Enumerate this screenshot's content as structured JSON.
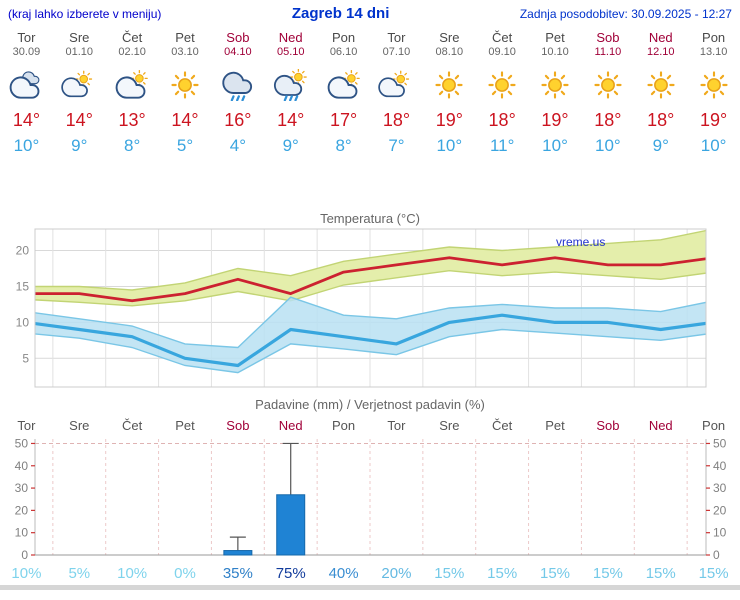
{
  "header": {
    "left_note": "(kraj lahko izberete v meniju)",
    "title": "Zagreb 14 dni",
    "updated": "Zadnja posodobitev: 30.09.2025 - 12:27"
  },
  "charts": {
    "watermark": "vreme.us"
  },
  "days": [
    {
      "name": "Tor",
      "date": "30.09",
      "icon": "cloudy",
      "tmax": "14°",
      "tmin": "10°",
      "weekend": false
    },
    {
      "name": "Sre",
      "date": "01.10",
      "icon": "partly-cloudy",
      "tmax": "14°",
      "tmin": "9°",
      "weekend": false
    },
    {
      "name": "Čet",
      "date": "02.10",
      "icon": "mostly-cloudy",
      "tmax": "13°",
      "tmin": "8°",
      "weekend": false
    },
    {
      "name": "Pet",
      "date": "03.10",
      "icon": "sunny",
      "tmax": "14°",
      "tmin": "5°",
      "weekend": false
    },
    {
      "name": "Sob",
      "date": "04.10",
      "icon": "rain",
      "tmax": "16°",
      "tmin": "4°",
      "weekend": true
    },
    {
      "name": "Ned",
      "date": "05.10",
      "icon": "rain-sun",
      "tmax": "14°",
      "tmin": "9°",
      "weekend": true
    },
    {
      "name": "Pon",
      "date": "06.10",
      "icon": "mostly-cloudy",
      "tmax": "17°",
      "tmin": "8°",
      "weekend": false
    },
    {
      "name": "Tor",
      "date": "07.10",
      "icon": "partly-cloudy",
      "tmax": "18°",
      "tmin": "7°",
      "weekend": false
    },
    {
      "name": "Sre",
      "date": "08.10",
      "icon": "sunny",
      "tmax": "19°",
      "tmin": "10°",
      "weekend": false
    },
    {
      "name": "Čet",
      "date": "09.10",
      "icon": "sunny",
      "tmax": "18°",
      "tmin": "11°",
      "weekend": false
    },
    {
      "name": "Pet",
      "date": "10.10",
      "icon": "sunny",
      "tmax": "19°",
      "tmin": "10°",
      "weekend": false
    },
    {
      "name": "Sob",
      "date": "11.10",
      "icon": "sunny",
      "tmax": "18°",
      "tmin": "10°",
      "weekend": true
    },
    {
      "name": "Ned",
      "date": "12.10",
      "icon": "sunny",
      "tmax": "18°",
      "tmin": "9°",
      "weekend": true
    },
    {
      "name": "Pon",
      "date": "13.10",
      "icon": "sunny",
      "tmax": "19°",
      "tmin": "10°",
      "weekend": false
    }
  ],
  "chart_data": [
    {
      "type": "line",
      "title": "Temperatura (°C)",
      "categories": [
        "Tor 30.09",
        "Sre 01.10",
        "Čet 02.10",
        "Pet 03.10",
        "Sob 04.10",
        "Ned 05.10",
        "Pon 06.10",
        "Tor 07.10",
        "Sre 08.10",
        "Čet 09.10",
        "Pet 10.10",
        "Sob 11.10",
        "Ned 12.10",
        "Pon 13.10"
      ],
      "ylim": [
        1,
        23
      ],
      "yticks": [
        5,
        10,
        15,
        20
      ],
      "series": [
        {
          "name": "max",
          "color": "#cc2130",
          "band_color": "#e4eeab",
          "band_edge": "#c2d474",
          "values": [
            14,
            14,
            13,
            14,
            16,
            14,
            17,
            18,
            19,
            18,
            19,
            18,
            18,
            19
          ],
          "band_upper": [
            15,
            15,
            14.5,
            15.5,
            17.5,
            16.5,
            18.5,
            19.5,
            20.5,
            20,
            20.5,
            21,
            21.5,
            23
          ],
          "band_lower": [
            13.2,
            12.8,
            12.3,
            13,
            14.3,
            13,
            15.2,
            16.2,
            17.2,
            16.5,
            17,
            16.5,
            16,
            17
          ]
        },
        {
          "name": "min",
          "color": "#38a6de",
          "band_color": "#b9e0f2",
          "band_edge": "#7ac6e6",
          "values": [
            10,
            9,
            8,
            5,
            4,
            9,
            8,
            7,
            10,
            11,
            10,
            10,
            9,
            10
          ],
          "band_upper": [
            11.5,
            10.5,
            9.5,
            7,
            6.5,
            13.5,
            11,
            10.5,
            12,
            12.5,
            12,
            12,
            11.5,
            13
          ],
          "band_lower": [
            8.5,
            7.8,
            6.5,
            4,
            3,
            7,
            6.3,
            5.5,
            8,
            9,
            8.5,
            8,
            7.5,
            8.5
          ]
        }
      ]
    },
    {
      "type": "bar",
      "title": "Padavine (mm) / Verjetnost padavin (%)",
      "categories": [
        "Tor",
        "Sre",
        "Čet",
        "Pet",
        "Sob",
        "Ned",
        "Pon",
        "Tor",
        "Sre",
        "Čet",
        "Pet",
        "Sob",
        "Ned",
        "Pon"
      ],
      "weekend": [
        false,
        false,
        false,
        false,
        true,
        true,
        false,
        false,
        false,
        false,
        false,
        true,
        true,
        false
      ],
      "values_mm": [
        0,
        0,
        0,
        0,
        2,
        27,
        0,
        0,
        0,
        0,
        0,
        0,
        0,
        0
      ],
      "whisker_max_mm": [
        0,
        0,
        0,
        0,
        8,
        50,
        0,
        0,
        0,
        0,
        0,
        0,
        0,
        0
      ],
      "yticks": [
        0,
        10,
        20,
        30,
        40,
        50
      ],
      "ylim": [
        0,
        52
      ],
      "bar_color": "#1f83d4",
      "probabilities": [
        {
          "label": "10%",
          "color": "#7ed3ec"
        },
        {
          "label": "5%",
          "color": "#7ed3ec"
        },
        {
          "label": "10%",
          "color": "#7ed3ec"
        },
        {
          "label": "0%",
          "color": "#7ed3ec"
        },
        {
          "label": "35%",
          "color": "#2f80c8"
        },
        {
          "label": "75%",
          "color": "#123c9c"
        },
        {
          "label": "40%",
          "color": "#3a8ed2"
        },
        {
          "label": "20%",
          "color": "#63b9e2"
        },
        {
          "label": "15%",
          "color": "#74c9e8"
        },
        {
          "label": "15%",
          "color": "#74c9e8"
        },
        {
          "label": "15%",
          "color": "#74c9e8"
        },
        {
          "label": "15%",
          "color": "#74c9e8"
        },
        {
          "label": "15%",
          "color": "#74c9e8"
        },
        {
          "label": "15%",
          "color": "#74c9e8"
        }
      ]
    }
  ]
}
